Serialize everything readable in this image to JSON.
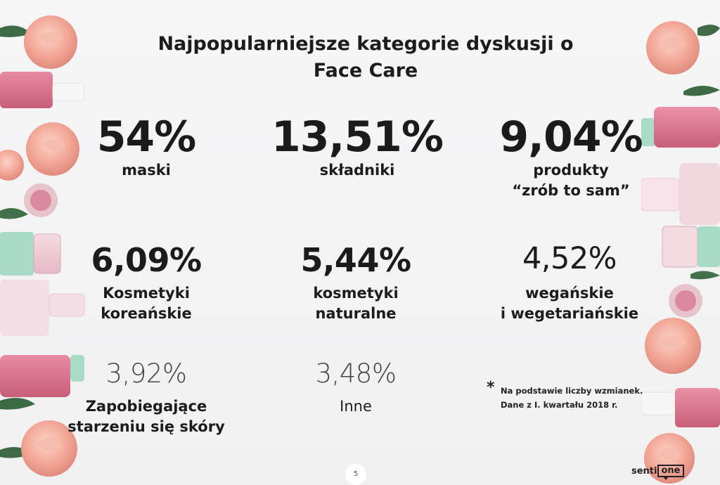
{
  "title": {
    "line1": "Najpopularniejsze kategorie dyskusji o",
    "line2": "Face Care"
  },
  "stats": [
    {
      "pct": "54%",
      "label1": "maski",
      "label2": ""
    },
    {
      "pct": "13,51%",
      "label1": "składniki",
      "label2": ""
    },
    {
      "pct": "9,04%",
      "label1": "produkty",
      "label2": "“zrób to sam”"
    },
    {
      "pct": "6,09%",
      "label1": "Kosmetyki",
      "label2": "koreańskie"
    },
    {
      "pct": "5,44%",
      "label1": "kosmetyki",
      "label2": "naturalne"
    },
    {
      "pct": "4,52%",
      "label1": "wegańskie",
      "label2": "i wegetariańskie"
    },
    {
      "pct": "3,92%",
      "label1": "Zapobiegające",
      "label2": "starzeniu się skóry"
    },
    {
      "pct": "3,48%",
      "label1": "Inne",
      "label2": ""
    }
  ],
  "note": {
    "star": "*",
    "line1": "Na podstawie liczby wzmianek.",
    "line2": "Dane z I. kwartału 2018 r."
  },
  "page_number": "5",
  "brand": {
    "part1": "senti",
    "part2": "one"
  },
  "colors": {
    "background": "#f3f3f4",
    "text": "#1c1c1c",
    "rose": "#f2aa9c",
    "bottle_pink": "#d9758e",
    "bottle_mint": "#a8dcc6"
  }
}
